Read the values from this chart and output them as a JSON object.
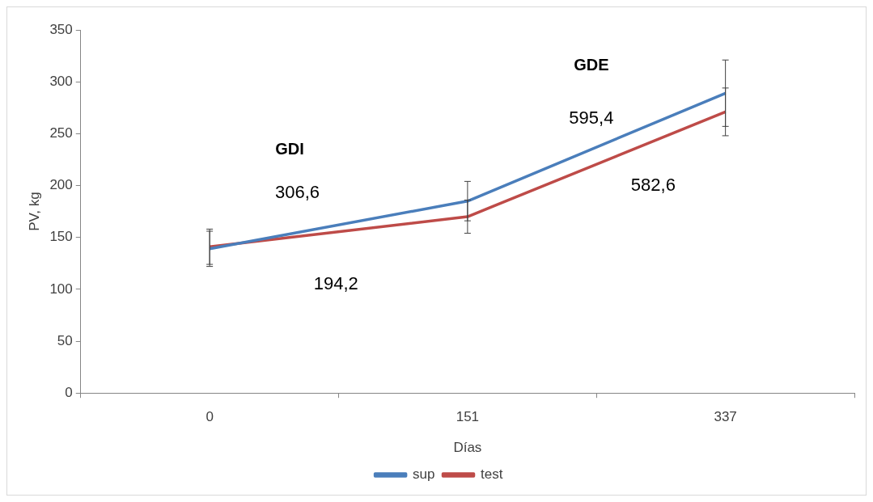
{
  "chart_data": {
    "type": "line",
    "xlabel": "Días",
    "ylabel": "PV, kg",
    "categories": [
      "0",
      "151",
      "337"
    ],
    "series": [
      {
        "name": "sup",
        "color": "#4a7ebb",
        "values": [
          139,
          185,
          289
        ],
        "errors": [
          17,
          19,
          32
        ]
      },
      {
        "name": "test",
        "color": "#be4b48",
        "values": [
          141,
          170,
          271
        ],
        "errors": [
          17,
          16,
          23
        ]
      }
    ],
    "ylim": [
      0,
      350
    ],
    "yticks": [
      0,
      50,
      100,
      150,
      200,
      250,
      300,
      350
    ],
    "grid": false,
    "legend": "bottom",
    "marker": "none",
    "line_style": "solid",
    "annotations": [
      "GDI",
      "306,6",
      "194,2",
      "GDE",
      "595,4",
      "582,6"
    ]
  }
}
